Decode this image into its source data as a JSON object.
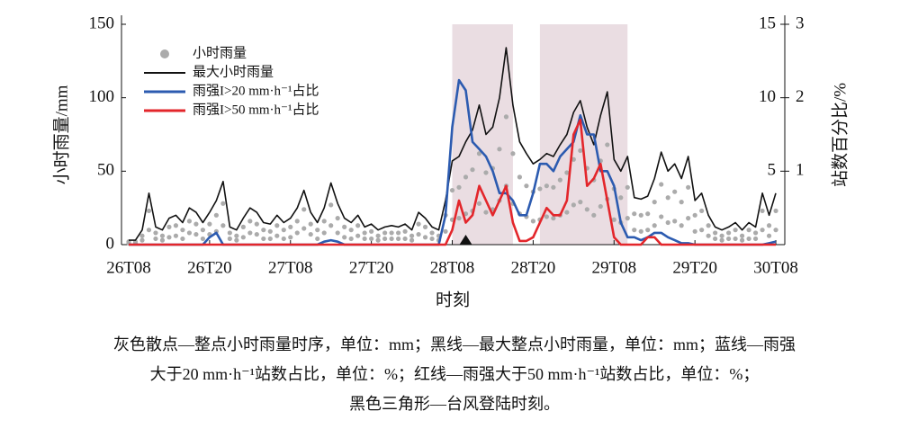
{
  "chart_data": {
    "type": "line",
    "ylabel": "小时雨量/mm",
    "y2label": "站数百分比/%",
    "xlabel": "时刻",
    "categories": [
      "26T08",
      null,
      null,
      null,
      null,
      null,
      null,
      null,
      null,
      null,
      null,
      null,
      "26T20",
      null,
      null,
      null,
      null,
      null,
      null,
      null,
      null,
      null,
      null,
      null,
      "27T08",
      null,
      null,
      null,
      null,
      null,
      null,
      null,
      null,
      null,
      null,
      null,
      "27T20",
      null,
      null,
      null,
      null,
      null,
      null,
      null,
      null,
      null,
      null,
      null,
      "28T08",
      null,
      null,
      null,
      null,
      null,
      null,
      null,
      null,
      null,
      null,
      null,
      "28T20",
      null,
      null,
      null,
      null,
      null,
      null,
      null,
      null,
      null,
      null,
      null,
      "29T08",
      null,
      null,
      null,
      null,
      null,
      null,
      null,
      null,
      null,
      null,
      null,
      "29T20",
      null,
      null,
      null,
      null,
      null,
      null,
      null,
      null,
      null,
      null,
      null,
      "30T08"
    ],
    "ylim": [
      0,
      150
    ],
    "yticks": [
      0,
      50,
      100,
      150
    ],
    "y2lim": [
      0,
      15
    ],
    "y2ticks": [
      5,
      10,
      15
    ],
    "y3lim": [
      0,
      3
    ],
    "y3ticks": [
      1,
      2,
      3
    ],
    "shaded_ranges": [
      [
        48,
        57
      ],
      [
        61,
        74
      ]
    ],
    "landfall_index": 50,
    "series": [
      {
        "name": "小时雨量",
        "type": "scatter",
        "axis": "y",
        "color": "#ababab",
        "values": [
          [
            2,
            1
          ],
          [
            2,
            1
          ],
          [
            6,
            3
          ],
          [
            23,
            10
          ],
          [
            8,
            4
          ],
          [
            6,
            3
          ],
          [
            12,
            5
          ],
          [
            13,
            6
          ],
          [
            10,
            4
          ],
          [
            16,
            8
          ],
          [
            14,
            7
          ],
          [
            10,
            4
          ],
          [
            14,
            7
          ],
          [
            20,
            9
          ],
          [
            28,
            13
          ],
          [
            8,
            4
          ],
          [
            6,
            3
          ],
          [
            12,
            5
          ],
          [
            16,
            8
          ],
          [
            14,
            7
          ],
          [
            10,
            4
          ],
          [
            9,
            4
          ],
          [
            13,
            6
          ],
          [
            10,
            4
          ],
          [
            12,
            5
          ],
          [
            16,
            8
          ],
          [
            24,
            11
          ],
          [
            14,
            7
          ],
          [
            10,
            4
          ],
          [
            16,
            8
          ],
          [
            27,
            13
          ],
          [
            18,
            8
          ],
          [
            12,
            5
          ],
          [
            10,
            4
          ],
          [
            13,
            6
          ],
          [
            8,
            4
          ],
          [
            9,
            4
          ],
          [
            6,
            3
          ],
          [
            8,
            4
          ],
          [
            8,
            4
          ],
          [
            8,
            4
          ],
          [
            9,
            4
          ],
          [
            6,
            3
          ],
          [
            14,
            7
          ],
          [
            12,
            5
          ],
          [
            8,
            4
          ],
          [
            6,
            3
          ],
          [
            20,
            9
          ],
          [
            37,
            17
          ],
          [
            39,
            18
          ],
          [
            46,
            21
          ],
          [
            51,
            23
          ],
          [
            62,
            28
          ],
          [
            49,
            22
          ],
          [
            52,
            24
          ],
          [
            65,
            30
          ],
          [
            87,
            40
          ],
          [
            62,
            28
          ],
          [
            46,
            21
          ],
          [
            40,
            19
          ],
          [
            36,
            16
          ],
          [
            38,
            17
          ],
          [
            40,
            19
          ],
          [
            39,
            18
          ],
          [
            44,
            20
          ],
          [
            49,
            22
          ],
          [
            58,
            27
          ],
          [
            64,
            29
          ],
          [
            52,
            24
          ],
          [
            44,
            20
          ],
          [
            57,
            26
          ],
          [
            68,
            31
          ],
          [
            38,
            17
          ],
          [
            32,
            15
          ],
          [
            39,
            18
          ],
          [
            21,
            10
          ],
          [
            20,
            9
          ],
          [
            21,
            10
          ],
          [
            29,
            13
          ],
          [
            41,
            19
          ],
          [
            32,
            15
          ],
          [
            36,
            16
          ],
          [
            29,
            13
          ],
          [
            39,
            18
          ],
          [
            20,
            9
          ],
          [
            23,
            10
          ],
          [
            13,
            6
          ],
          [
            8,
            4
          ],
          [
            6,
            3
          ],
          [
            8,
            4
          ],
          [
            10,
            4
          ],
          [
            6,
            3
          ],
          [
            10,
            4
          ],
          [
            8,
            4
          ],
          [
            23,
            10
          ],
          [
            13,
            6
          ],
          [
            23,
            10
          ]
        ]
      },
      {
        "name": "最大小时雨量",
        "axis": "y",
        "color": "#111111",
        "values": [
          3,
          3,
          10,
          35,
          12,
          10,
          18,
          20,
          15,
          25,
          22,
          15,
          22,
          30,
          43,
          12,
          10,
          18,
          25,
          22,
          15,
          14,
          20,
          15,
          18,
          25,
          37,
          22,
          15,
          25,
          42,
          28,
          18,
          15,
          20,
          12,
          14,
          10,
          12,
          13,
          12,
          14,
          10,
          22,
          18,
          12,
          10,
          30,
          57,
          60,
          70,
          78,
          95,
          75,
          80,
          100,
          134,
          95,
          70,
          62,
          55,
          58,
          62,
          60,
          68,
          75,
          90,
          98,
          80,
          68,
          88,
          104,
          58,
          50,
          60,
          32,
          31,
          33,
          45,
          63,
          50,
          55,
          45,
          60,
          30,
          35,
          20,
          12,
          10,
          12,
          15,
          10,
          15,
          12,
          35,
          20,
          35
        ]
      },
      {
        "name": "雨强I>20 mm·h⁻¹占比",
        "axis": "y2",
        "color": "#2c5bb0",
        "values": [
          0,
          0,
          0,
          0,
          0,
          0,
          0,
          0,
          0,
          0,
          0,
          0,
          0.5,
          0.8,
          0,
          0,
          0,
          0,
          0,
          0,
          0,
          0,
          0,
          0,
          0,
          0,
          0,
          0,
          0,
          0.2,
          0.3,
          0.2,
          0,
          0,
          0,
          0,
          0,
          0,
          0,
          0,
          0,
          0,
          0,
          0,
          0,
          0,
          0,
          2,
          8,
          11.2,
          10.5,
          7,
          6.5,
          6,
          5,
          3.5,
          3.5,
          3,
          2,
          2,
          3.5,
          5.5,
          5.5,
          5,
          6,
          6.5,
          7,
          8.8,
          7.5,
          7.5,
          5,
          5,
          4,
          1.5,
          0.5,
          0.5,
          0.3,
          0.5,
          0.8,
          0.8,
          0.5,
          0.3,
          0.1,
          0.1,
          0,
          0,
          0,
          0,
          0,
          0,
          0,
          0,
          0,
          0,
          0,
          0.1,
          0.2
        ]
      },
      {
        "name": "雨强I>50 mm·h⁻¹占比",
        "axis": "y3",
        "color": "#e3262b",
        "values": [
          0,
          0,
          0,
          0,
          0,
          0,
          0,
          0,
          0,
          0,
          0,
          0,
          0,
          0,
          0,
          0,
          0,
          0,
          0,
          0,
          0,
          0,
          0,
          0,
          0,
          0,
          0,
          0,
          0,
          0,
          0,
          0,
          0,
          0,
          0,
          0,
          0,
          0,
          0,
          0,
          0,
          0,
          0,
          0,
          0,
          0,
          0,
          0,
          0.2,
          0.6,
          0.3,
          0.4,
          0.8,
          0.6,
          0.4,
          0.6,
          0.8,
          0.3,
          0.05,
          0.05,
          0.1,
          0.3,
          0.5,
          0.4,
          0.4,
          0.6,
          1.5,
          1.7,
          0.8,
          0.9,
          1.1,
          0.6,
          0.1,
          0,
          0,
          0,
          0,
          0.1,
          0.1,
          0,
          0,
          0,
          0,
          0,
          0,
          0,
          0,
          0,
          0,
          0,
          0,
          0,
          0,
          0,
          0,
          0,
          0
        ]
      }
    ],
    "caption": [
      "灰色散点—整点小时雨量时序，单位：mm；黑线—最大整点小时雨量，单位：mm；蓝线—雨强",
      "大于20 mm·h⁻¹站数占比，单位：%；红线—雨强大于50 mm·h⁻¹站数占比，单位：%；",
      "黑色三角形—台风登陆时刻。"
    ]
  }
}
